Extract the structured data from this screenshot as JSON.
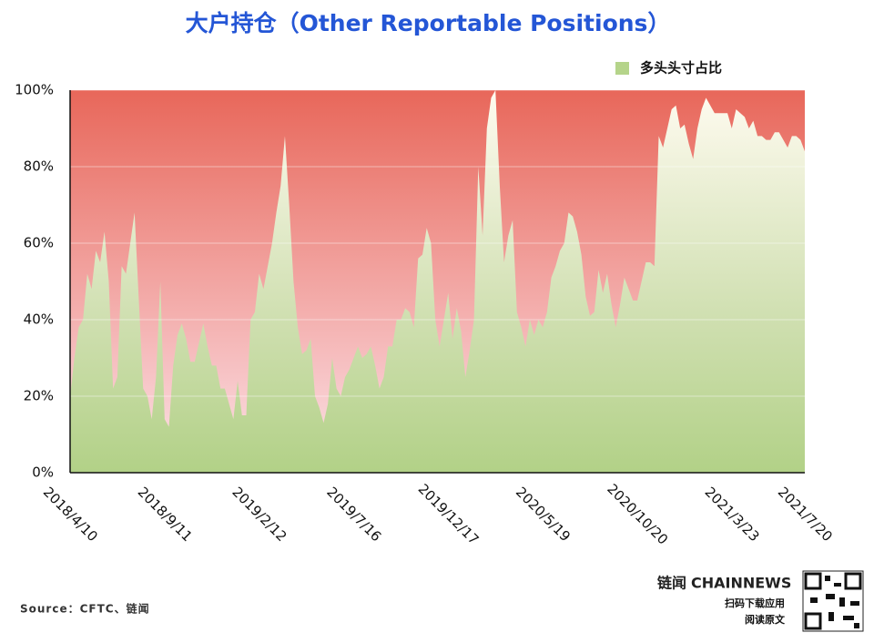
{
  "chart_data": {
    "type": "area",
    "title": "大户持仓（Other Reportable Positions）",
    "categories": [
      "2018/4/10",
      null,
      null,
      null,
      null,
      null,
      null,
      null,
      null,
      null,
      null,
      null,
      null,
      null,
      null,
      null,
      null,
      null,
      null,
      null,
      null,
      null,
      "2018/9/11",
      null,
      null,
      null,
      null,
      null,
      null,
      null,
      null,
      null,
      null,
      null,
      null,
      null,
      null,
      null,
      null,
      null,
      null,
      null,
      null,
      null,
      "2019/2/12",
      null,
      null,
      null,
      null,
      null,
      null,
      null,
      null,
      null,
      null,
      null,
      null,
      null,
      null,
      null,
      null,
      null,
      null,
      null,
      null,
      null,
      "2019/7/16",
      null,
      null,
      null,
      null,
      null,
      null,
      null,
      null,
      null,
      null,
      null,
      null,
      null,
      null,
      null,
      null,
      null,
      null,
      null,
      null,
      null,
      "2019/12/17",
      null,
      null,
      null,
      null,
      null,
      null,
      null,
      null,
      null,
      null,
      null,
      null,
      null,
      null,
      null,
      null,
      null,
      null,
      null,
      null,
      null,
      "2020/5/19",
      null,
      null,
      null,
      null,
      null,
      null,
      null,
      null,
      null,
      null,
      null,
      null,
      null,
      null,
      null,
      null,
      null,
      null,
      null,
      null,
      null,
      "2020/10/20",
      null,
      null,
      null,
      null,
      null,
      null,
      null,
      null,
      null,
      null,
      null,
      null,
      null,
      null,
      null,
      null,
      null,
      null,
      null,
      null,
      null,
      "2021/3/23",
      null,
      null,
      null,
      null,
      null,
      null,
      null,
      null,
      null,
      null,
      null,
      null,
      null,
      null,
      null,
      null,
      "2021/7/20"
    ],
    "series": [
      {
        "name": "多头头寸占比",
        "color": "#b5d48a",
        "values": [
          20,
          30,
          38,
          40,
          52,
          48,
          58,
          55,
          63,
          50,
          22,
          25,
          54,
          52,
          60,
          68,
          45,
          22,
          20,
          14,
          25,
          50,
          14,
          12,
          28,
          36,
          39,
          35,
          29,
          29,
          34,
          39,
          33,
          28,
          28,
          22,
          22,
          18,
          14,
          24,
          15,
          15,
          40,
          42,
          52,
          48,
          54,
          60,
          68,
          75,
          88,
          70,
          50,
          38,
          31,
          32,
          35,
          20,
          17,
          13,
          18,
          30,
          22,
          20,
          25,
          27,
          30,
          33,
          30,
          31,
          33,
          28,
          22,
          25,
          33,
          33,
          40,
          40,
          43,
          42,
          38,
          56,
          57,
          64,
          60,
          40,
          33,
          40,
          47,
          35,
          43,
          37,
          25,
          32,
          40,
          80,
          62,
          90,
          98,
          100,
          75,
          55,
          62,
          66,
          42,
          38,
          33,
          40,
          36,
          40,
          38,
          42,
          51,
          54,
          58,
          60,
          68,
          67,
          63,
          57,
          46,
          41,
          42,
          53,
          47,
          52,
          44,
          38,
          44,
          51,
          48,
          45,
          45,
          50,
          55,
          55,
          54,
          88,
          85,
          90,
          95,
          96,
          90,
          91,
          86,
          82,
          90,
          95,
          98,
          96,
          94,
          94,
          94,
          94,
          90,
          95,
          94,
          93,
          90,
          92,
          88,
          88,
          87,
          87,
          89,
          89,
          87,
          85,
          88,
          88,
          87,
          84
        ]
      }
    ],
    "rest_color": "#e8675a",
    "ylim": [
      0,
      100
    ],
    "yticks": [
      {
        "value": 0,
        "label": "0%"
      },
      {
        "value": 20,
        "label": "20%"
      },
      {
        "value": 40,
        "label": "40%"
      },
      {
        "value": 60,
        "label": "60%"
      },
      {
        "value": 80,
        "label": "80%"
      },
      {
        "value": 100,
        "label": "100%"
      }
    ],
    "grid": true,
    "legend": "top-right"
  },
  "source": "Source：CFTC、链闻",
  "brand": {
    "name_cn": "链闻",
    "name_en": "CHAINNEWS",
    "line1": "扫码下载应用",
    "line2": "阅读原文"
  }
}
